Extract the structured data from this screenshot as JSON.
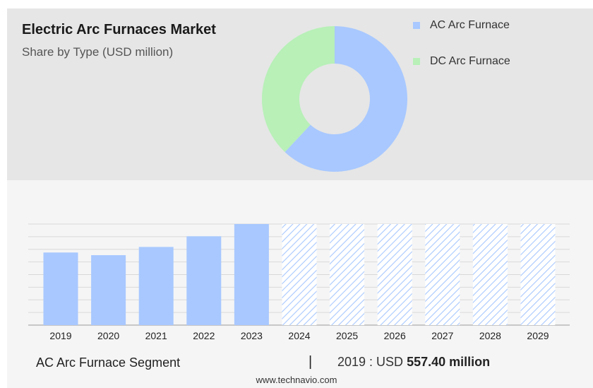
{
  "header": {
    "title": "Electric Arc Furnaces Market",
    "subtitle": "Share by Type (USD million)"
  },
  "legend": [
    {
      "label": "AC Arc Furnace",
      "color": "#a8c8ff"
    },
    {
      "label": "DC Arc Furnace",
      "color": "#b8f0b8"
    }
  ],
  "footer": {
    "segment": "AC Arc Furnace Segment",
    "separator": "|",
    "year_label": "2019 : USD",
    "value": "557.40 million",
    "source": "www.technavio.com"
  },
  "chart_data": [
    {
      "type": "pie",
      "donut": true,
      "title": "Share by Type (USD million)",
      "labels": [
        "AC Arc Furnace",
        "DC Arc Furnace"
      ],
      "values": [
        62,
        38
      ],
      "colors": [
        "#a8c8ff",
        "#b8f0b8"
      ]
    },
    {
      "type": "bar",
      "categories": [
        "2019",
        "2020",
        "2021",
        "2022",
        "2023",
        "2024",
        "2025",
        "2026",
        "2027",
        "2028",
        "2029"
      ],
      "values": [
        557.4,
        537,
        600,
        682,
        776,
        null,
        null,
        null,
        null,
        null,
        null
      ],
      "forecast": [
        "2024",
        "2025",
        "2026",
        "2027",
        "2028",
        "2029"
      ],
      "ylim": [
        0,
        776
      ],
      "grid": true,
      "color": "#a8c8ff"
    }
  ]
}
